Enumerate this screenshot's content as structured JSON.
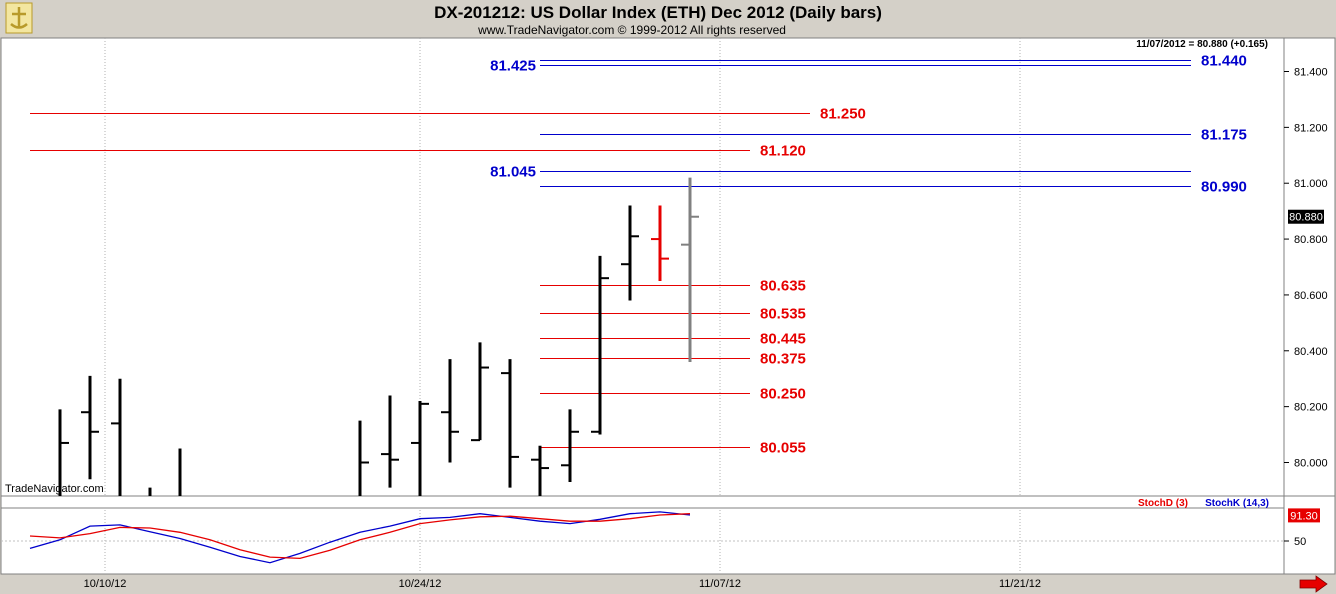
{
  "header": {
    "title": "DX-201212:  US Dollar Index (ETH) Dec 2012  (Daily bars)",
    "copyright": "www.TradeNavigator.com © 1999-2012 All rights reserved",
    "quote": "11/07/2012 = 80.880 (+0.165)"
  },
  "watermark": "TradeNavigator.com",
  "colors": {
    "bar": "#000000",
    "red": "#e60000",
    "blue": "#0000cc",
    "grey": "#808080",
    "background": "#ffffff",
    "frame": "#d4d0c8"
  },
  "chart_data": {
    "type": "bar",
    "title": "DX-201212:  US Dollar Index (ETH) Dec 2012  (Daily bars)",
    "price_axis": {
      "ylim": [
        79.88,
        81.52
      ],
      "ticks": [
        80.0,
        80.2,
        80.4,
        80.6,
        80.8,
        81.0,
        81.2,
        81.4
      ],
      "tick_labels": [
        "80.000",
        "80.200",
        "80.400",
        "80.600",
        "80.800",
        "81.000",
        "81.200",
        "81.400"
      ],
      "last_price_label": "80.880",
      "last_price": 80.88
    },
    "x_axis": {
      "date_labels": [
        {
          "label": "10/10/12",
          "bar": 2.5
        },
        {
          "label": "10/24/12",
          "bar": 13
        },
        {
          "label": "11/07/12",
          "bar": 23
        },
        {
          "label": "11/21/12",
          "bar": 33
        }
      ],
      "x_range_bars": [
        0,
        40
      ]
    },
    "bars": [
      {
        "i": 1,
        "high": 80.19,
        "low": 79.88,
        "close": 80.07,
        "color": "black"
      },
      {
        "i": 2,
        "high": 80.31,
        "low": 79.94,
        "open": 80.18,
        "close": 80.11,
        "color": "black"
      },
      {
        "i": 3,
        "high": 80.3,
        "low": 79.88,
        "open": 80.14,
        "color": "black"
      },
      {
        "i": 4,
        "high": 79.91,
        "low": 79.88,
        "color": "black"
      },
      {
        "i": 5,
        "high": 80.05,
        "low": 79.88,
        "color": "black"
      },
      {
        "i": 11,
        "high": 80.15,
        "low": 79.88,
        "close": 80.0,
        "color": "black"
      },
      {
        "i": 12,
        "high": 80.24,
        "low": 79.91,
        "open": 80.03,
        "close": 80.01,
        "color": "black"
      },
      {
        "i": 13,
        "high": 80.22,
        "low": 79.88,
        "open": 80.07,
        "close": 80.21,
        "color": "black"
      },
      {
        "i": 14,
        "high": 80.37,
        "low": 80.0,
        "open": 80.18,
        "close": 80.11,
        "color": "black"
      },
      {
        "i": 15,
        "high": 80.43,
        "low": 80.08,
        "open": 80.08,
        "close": 80.34,
        "color": "black"
      },
      {
        "i": 16,
        "high": 80.37,
        "low": 79.91,
        "open": 80.32,
        "close": 80.02,
        "color": "black"
      },
      {
        "i": 17,
        "high": 80.06,
        "low": 79.88,
        "open": 80.01,
        "close": 79.98,
        "color": "black"
      },
      {
        "i": 18,
        "high": 80.19,
        "low": 79.93,
        "open": 79.99,
        "close": 80.11,
        "color": "black"
      },
      {
        "i": 19,
        "high": 80.74,
        "low": 80.1,
        "open": 80.11,
        "close": 80.66,
        "color": "black"
      },
      {
        "i": 20,
        "high": 80.92,
        "low": 80.58,
        "open": 80.71,
        "close": 80.81,
        "color": "black"
      },
      {
        "i": 21,
        "high": 80.92,
        "low": 80.65,
        "open": 80.8,
        "close": 80.73,
        "color": "red"
      },
      {
        "i": 22,
        "high": 81.02,
        "low": 80.36,
        "open": 80.78,
        "close": 80.88,
        "color": "grey"
      }
    ],
    "levels": [
      {
        "label": "81.440",
        "value": 81.44,
        "color": "blue",
        "from_bar": 17,
        "to_bar": 38.7,
        "label_side": "right"
      },
      {
        "label": "81.425",
        "value": 81.425,
        "color": "blue",
        "from_bar": 17,
        "to_bar": 38.7,
        "label_side": "left"
      },
      {
        "label": "81.250",
        "value": 81.25,
        "color": "red",
        "from_bar": 0,
        "to_bar": 26,
        "label_side": "right"
      },
      {
        "label": "81.175",
        "value": 81.175,
        "color": "blue",
        "from_bar": 17,
        "to_bar": 38.7,
        "label_side": "right"
      },
      {
        "label": "81.120",
        "value": 81.12,
        "color": "red",
        "from_bar": 0,
        "to_bar": 24,
        "label_side": "right"
      },
      {
        "label": "81.045",
        "value": 81.045,
        "color": "blue",
        "from_bar": 17,
        "to_bar": 38.7,
        "label_side": "left"
      },
      {
        "label": "80.990",
        "value": 80.99,
        "color": "blue",
        "from_bar": 17,
        "to_bar": 38.7,
        "label_side": "right"
      },
      {
        "label": "80.635",
        "value": 80.635,
        "color": "red",
        "from_bar": 17,
        "to_bar": 24,
        "label_side": "right"
      },
      {
        "label": "80.535",
        "value": 80.535,
        "color": "red",
        "from_bar": 17,
        "to_bar": 24,
        "label_side": "right"
      },
      {
        "label": "80.445",
        "value": 80.445,
        "color": "red",
        "from_bar": 17,
        "to_bar": 24,
        "label_side": "right"
      },
      {
        "label": "80.375",
        "value": 80.375,
        "color": "red",
        "from_bar": 17,
        "to_bar": 24,
        "label_side": "right"
      },
      {
        "label": "80.250",
        "value": 80.25,
        "color": "red",
        "from_bar": 17,
        "to_bar": 24,
        "label_side": "right"
      },
      {
        "label": "80.055",
        "value": 80.055,
        "color": "red",
        "from_bar": 17,
        "to_bar": 24,
        "label_side": "right"
      }
    ],
    "stochastic": {
      "ylim": [
        0,
        100
      ],
      "tick_labels": [
        "50"
      ],
      "ticks": [
        50
      ],
      "legend": [
        {
          "name": "StochD (3)",
          "color": "red"
        },
        {
          "name": "StochK (14,3)",
          "color": "blue"
        }
      ],
      "last_value_label": "91.30",
      "last_value": 91.3,
      "series": [
        {
          "name": "StochK (14,3)",
          "color": "blue",
          "x": [
            0,
            1,
            2,
            3,
            4,
            5,
            6,
            7,
            8,
            9,
            10,
            11,
            12,
            13,
            14,
            15,
            16,
            17,
            18,
            19,
            20,
            21,
            22
          ],
          "values": [
            38,
            52,
            74,
            76,
            65,
            54,
            40,
            25,
            15,
            30,
            48,
            64,
            74,
            86,
            88,
            94,
            88,
            82,
            78,
            85,
            94,
            97,
            92
          ]
        },
        {
          "name": "StochD (3)",
          "color": "red",
          "x": [
            0,
            1,
            2,
            3,
            4,
            5,
            6,
            7,
            8,
            9,
            10,
            11,
            12,
            13,
            14,
            15,
            16,
            17,
            18,
            19,
            20,
            21,
            22
          ],
          "values": [
            58,
            55,
            62,
            72,
            71,
            64,
            52,
            36,
            24,
            22,
            35,
            52,
            64,
            78,
            84,
            89,
            90,
            86,
            82,
            82,
            86,
            92,
            94
          ]
        }
      ]
    }
  }
}
